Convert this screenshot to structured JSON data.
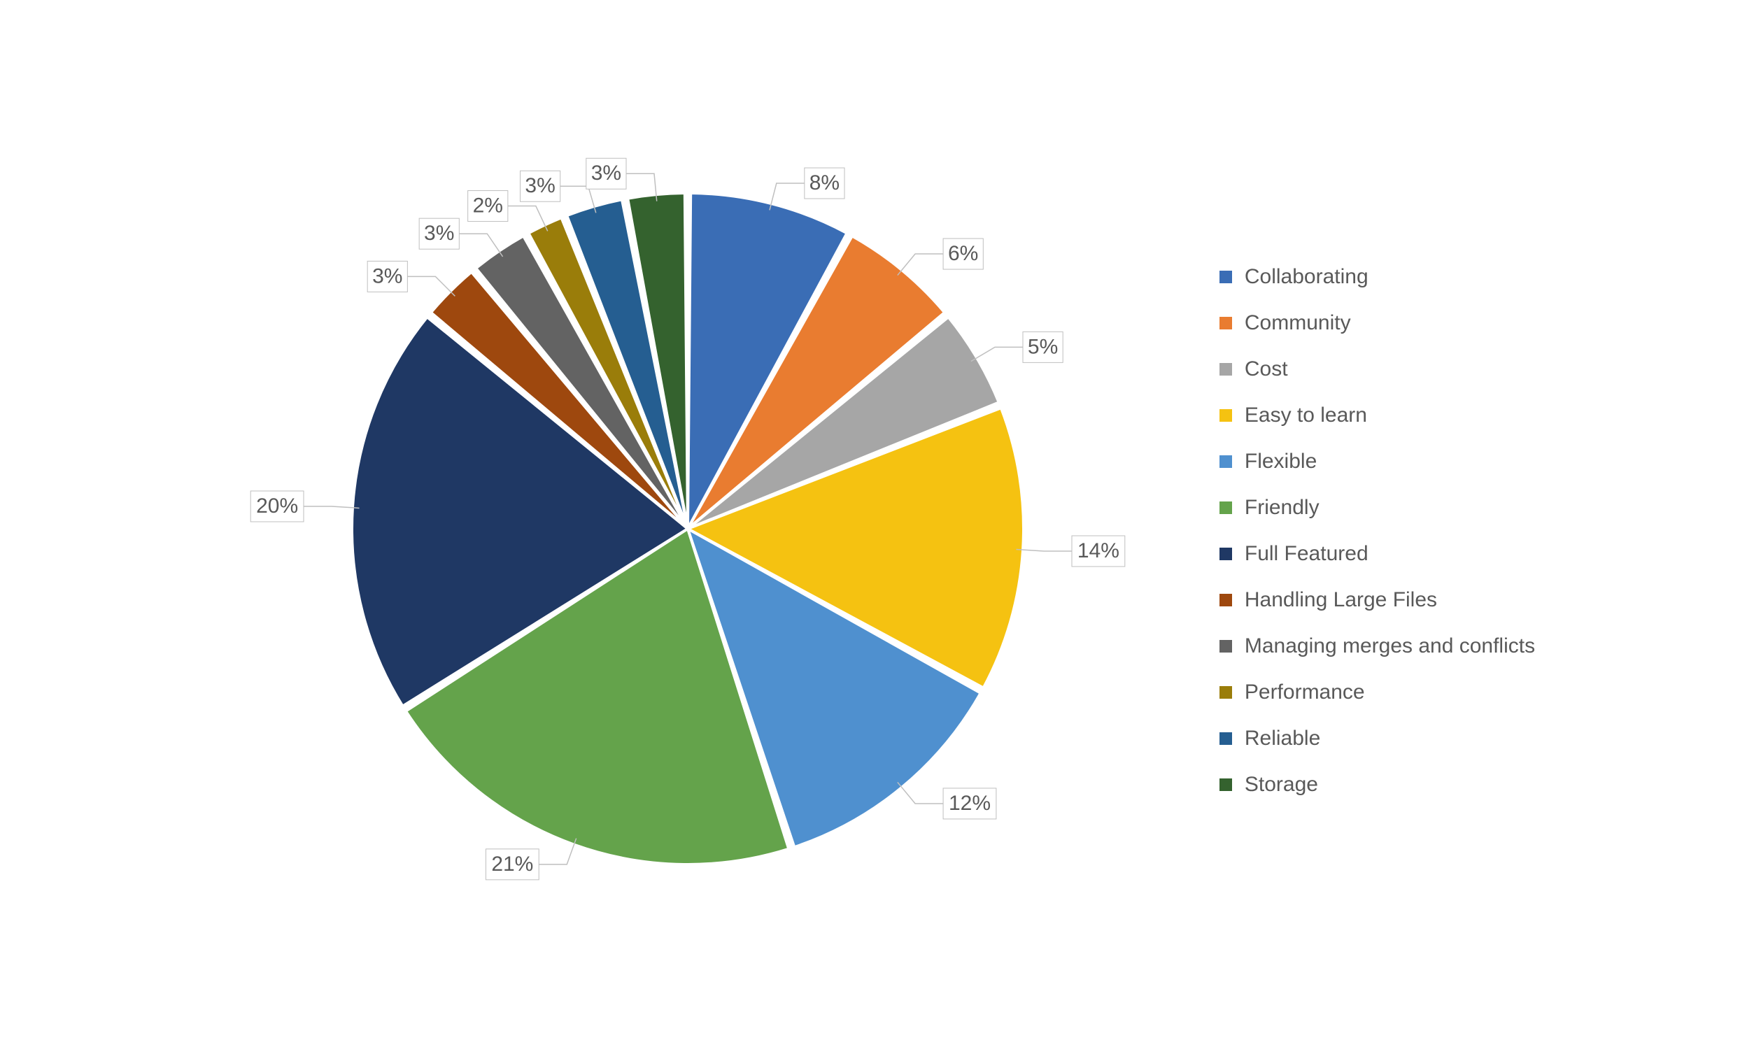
{
  "chart": {
    "type": "pie",
    "background_color": "#ffffff",
    "slice_gap_deg": 1.0,
    "slice_stroke": "#ffffff",
    "slice_stroke_width": 4,
    "radius": 480,
    "label_offset": 70,
    "label_fontsize": 30,
    "label_color": "#595959",
    "label_border": "#bfbfbf",
    "leader_color": "#bfbfbf",
    "legend_fontsize": 30,
    "legend_color": "#595959",
    "legend_swatch_size": 18,
    "slices": [
      {
        "name": "Collaborating",
        "value": 8,
        "label": "8%",
        "color": "#3a6db5"
      },
      {
        "name": "Community",
        "value": 6,
        "label": "6%",
        "color": "#e97c30"
      },
      {
        "name": "Cost",
        "value": 5,
        "label": "5%",
        "color": "#a6a6a6"
      },
      {
        "name": "Easy to learn",
        "value": 14,
        "label": "14%",
        "color": "#f5c211"
      },
      {
        "name": "Flexible",
        "value": 12,
        "label": "12%",
        "color": "#4f90cf"
      },
      {
        "name": "Friendly",
        "value": 21,
        "label": "21%",
        "color": "#64a34b"
      },
      {
        "name": "Full Featured",
        "value": 20,
        "label": "20%",
        "color": "#1f3864"
      },
      {
        "name": "Handling Large Files",
        "value": 3,
        "label": "3%",
        "color": "#9e480e"
      },
      {
        "name": "Managing merges and conflicts",
        "value": 3,
        "label": "3%",
        "color": "#636363"
      },
      {
        "name": "Performance",
        "value": 2,
        "label": "2%",
        "color": "#9a7d0a"
      },
      {
        "name": "Reliable",
        "value": 3,
        "label": "3%",
        "color": "#255e91"
      },
      {
        "name": "Storage",
        "value": 3,
        "label": "3%",
        "color": "#34622e"
      }
    ]
  }
}
